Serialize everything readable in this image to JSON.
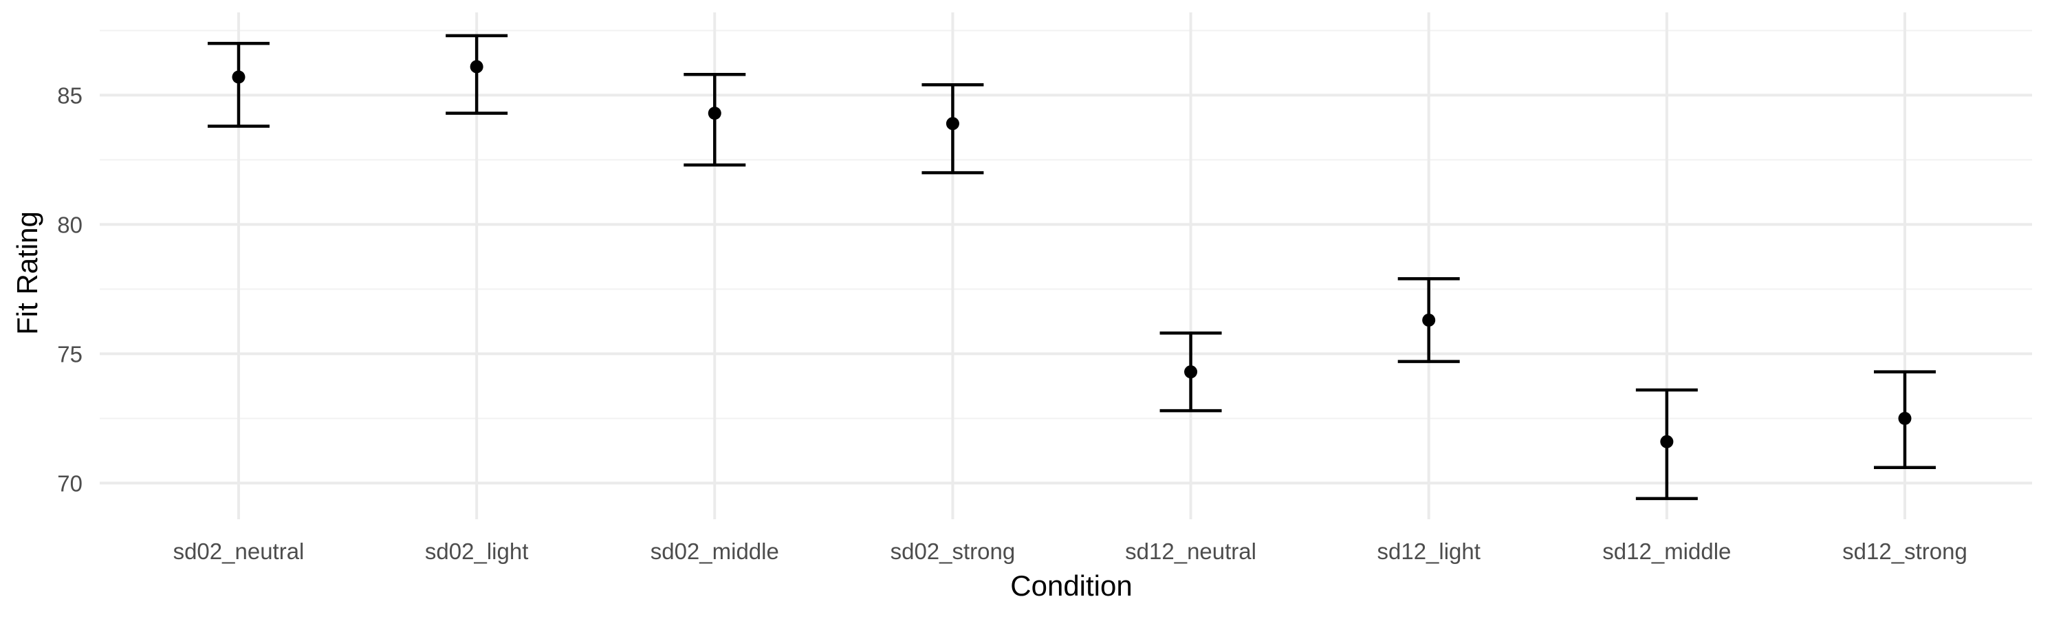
{
  "chart_data": {
    "type": "scatter",
    "subtype": "point-with-errorbars",
    "title": "",
    "xlabel": "Condition",
    "ylabel": "Fit Rating",
    "categories": [
      "sd02_neutral",
      "sd02_light",
      "sd02_middle",
      "sd02_strong",
      "sd12_neutral",
      "sd12_light",
      "sd12_middle",
      "sd12_strong"
    ],
    "values": [
      85.7,
      86.1,
      84.3,
      83.9,
      74.3,
      76.3,
      71.6,
      72.5
    ],
    "lower": [
      83.8,
      84.3,
      82.3,
      82.0,
      72.8,
      74.7,
      69.4,
      70.6
    ],
    "upper": [
      87.0,
      87.3,
      85.8,
      85.4,
      75.8,
      77.9,
      73.6,
      74.3
    ],
    "ylim": [
      68.6,
      88.2
    ],
    "yticks": [
      70,
      75,
      80,
      85
    ],
    "grid": true,
    "legend": "none",
    "colors": {
      "points": "#000000",
      "errorbars": "#000000",
      "grid_major": "#ebebeb",
      "grid_minor": "#f2f2f2",
      "tick_text": "#4d4d4d"
    }
  }
}
